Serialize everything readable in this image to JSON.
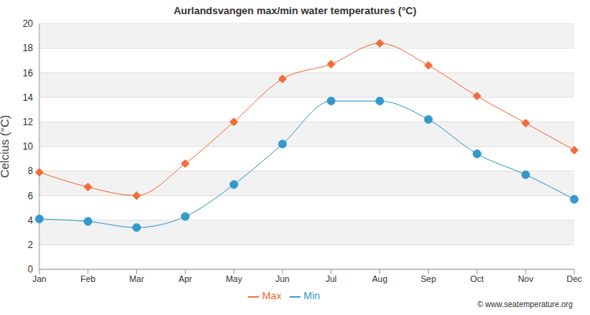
{
  "chart_data": {
    "type": "line",
    "title": "Aurlandsvangen max/min water temperatures (°C)",
    "y_label": "Celcius (°C)",
    "annotation": "© www.seatemperature.org",
    "categories": [
      "Jan",
      "Feb",
      "Mar",
      "Apr",
      "May",
      "Jun",
      "Jul",
      "Aug",
      "Sep",
      "Oct",
      "Nov",
      "Dec"
    ],
    "series": [
      {
        "name": "Max",
        "color": "#f26b38",
        "marker": "diamond",
        "values": [
          7.9,
          6.7,
          6.0,
          8.6,
          12.0,
          15.5,
          16.7,
          18.4,
          16.6,
          14.1,
          11.9,
          9.7
        ]
      },
      {
        "name": "Min",
        "color": "#3399cc",
        "marker": "circle",
        "values": [
          4.1,
          3.9,
          3.4,
          4.3,
          6.9,
          10.2,
          13.7,
          13.7,
          12.2,
          9.4,
          7.7,
          5.7
        ]
      }
    ],
    "ylim": [
      0,
      20
    ],
    "yticks": [
      0,
      2,
      4,
      6,
      8,
      10,
      12,
      14,
      16,
      18,
      20
    ],
    "grid": true,
    "legend": "bottom"
  }
}
